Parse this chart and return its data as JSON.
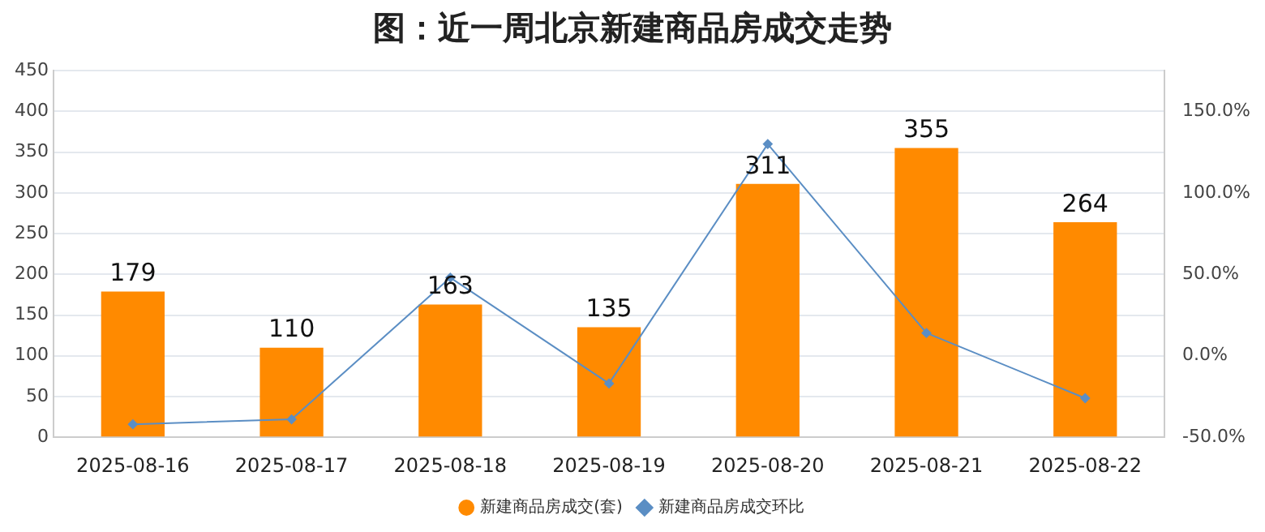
{
  "chart_data": {
    "type": "bar",
    "title": "图：近一周北京新建商品房成交走势",
    "categories": [
      "2025-08-16",
      "2025-08-17",
      "2025-08-18",
      "2025-08-19",
      "2025-08-20",
      "2025-08-21",
      "2025-08-22"
    ],
    "series": [
      {
        "name": "新建商品房成交(套)",
        "color": "#ff8a00",
        "values": [
          179,
          110,
          163,
          135,
          311,
          355,
          264
        ],
        "data_labels": true
      },
      {
        "name": "新建商品房成交环比",
        "type": "line",
        "axis": "y2",
        "color": "#5b8ec4",
        "marker": "diamond",
        "values": [
          -42,
          -39,
          48,
          -17,
          130,
          14,
          -26
        ]
      }
    ],
    "ylim": [
      0,
      450
    ],
    "yticks": [
      0,
      50,
      100,
      150,
      200,
      250,
      300,
      350,
      400,
      450
    ],
    "y2lim": [
      -50,
      175
    ],
    "y2ticks": [
      {
        "value": -50,
        "label": "-50.0%"
      },
      {
        "value": 0,
        "label": "0.0%"
      },
      {
        "value": 50,
        "label": "50.0%"
      },
      {
        "value": 100,
        "label": "100.0%"
      },
      {
        "value": 150,
        "label": "150.0%"
      }
    ],
    "grid": "y",
    "legend": "bottom"
  }
}
